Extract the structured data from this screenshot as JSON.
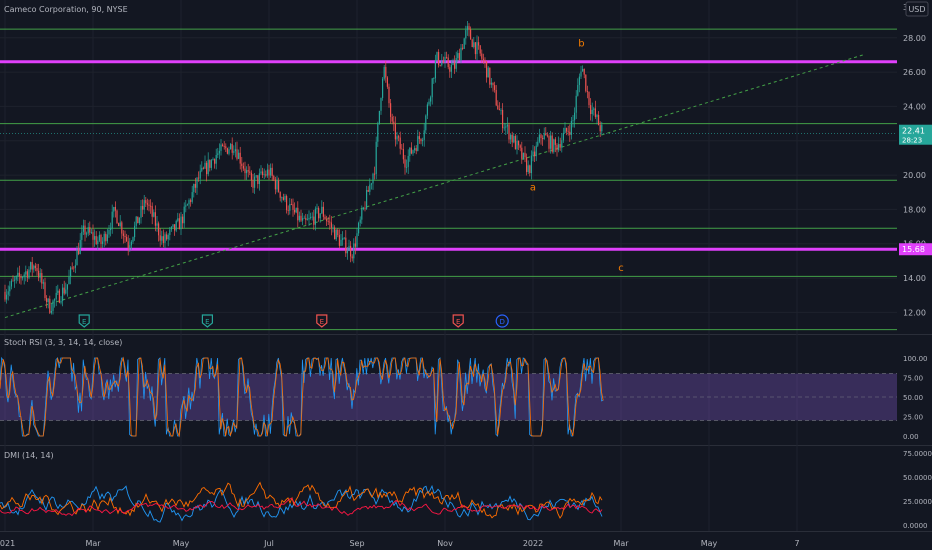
{
  "header": {
    "symbol_title": "Cameco Corporation, 90, NYSE",
    "currency": "USD",
    "top_axis_cut": "30"
  },
  "colors": {
    "background": "#131722",
    "grid": "#1e222d",
    "text": "#b2b5be",
    "up": "#26a69a",
    "down": "#ef5350",
    "hline": "#43a047",
    "magenta": "#e040fb",
    "trend": "#43a047",
    "wave_label": "#f57c00",
    "stoch_k": "#2196f3",
    "stoch_d": "#ff6d00",
    "stoch_band": "#7e57c2",
    "dmi_plus": "#2196f3",
    "dmi_minus": "#ff6d00",
    "dmi_adx": "#ff1744",
    "current_price_bg": "#26a69a"
  },
  "price_axis": {
    "ticks": [
      "28.00",
      "26.00",
      "24.00",
      "22.00",
      "20.00",
      "18.00",
      "16.00",
      "14.00",
      "12.00"
    ],
    "current_price": "22.41",
    "countdown": "28:23",
    "magenta_level_label": "15.68"
  },
  "chart_data": {
    "type": "candlestick",
    "ylim": [
      10.8,
      30.2
    ],
    "x_range_months_from_jan2021": [
      0,
      20
    ],
    "x_tick_labels": [
      "2021",
      "Mar",
      "May",
      "Jul",
      "Sep",
      "Nov",
      "2022",
      "Mar",
      "May",
      "7"
    ],
    "x_tick_months": [
      0,
      2,
      4,
      6,
      8,
      10,
      12,
      14,
      16,
      18
    ],
    "horizontal_levels": [
      28.5,
      23.0,
      19.7,
      16.9,
      14.1,
      11.0
    ],
    "magenta_levels": [
      26.6,
      15.68
    ],
    "trend_line": {
      "from": {
        "month": 0,
        "price": 11.7
      },
      "to": {
        "month": 19.5,
        "price": 27.0
      }
    },
    "close_series": [
      {
        "m": 0.0,
        "p": 13.2
      },
      {
        "m": 0.4,
        "p": 14.2
      },
      {
        "m": 0.7,
        "p": 14.8
      },
      {
        "m": 1.0,
        "p": 12.3
      },
      {
        "m": 1.4,
        "p": 13.5
      },
      {
        "m": 1.8,
        "p": 16.8
      },
      {
        "m": 2.2,
        "p": 16.0
      },
      {
        "m": 2.5,
        "p": 17.9
      },
      {
        "m": 2.8,
        "p": 16.0
      },
      {
        "m": 3.2,
        "p": 18.5
      },
      {
        "m": 3.6,
        "p": 16.1
      },
      {
        "m": 4.0,
        "p": 17.3
      },
      {
        "m": 4.4,
        "p": 19.8
      },
      {
        "m": 4.8,
        "p": 21.2
      },
      {
        "m": 5.2,
        "p": 21.8
      },
      {
        "m": 5.6,
        "p": 19.5
      },
      {
        "m": 6.0,
        "p": 20.2
      },
      {
        "m": 6.4,
        "p": 18.3
      },
      {
        "m": 6.8,
        "p": 17.1
      },
      {
        "m": 7.2,
        "p": 17.9
      },
      {
        "m": 7.6,
        "p": 16.2
      },
      {
        "m": 7.9,
        "p": 15.5
      },
      {
        "m": 8.1,
        "p": 17.5
      },
      {
        "m": 8.4,
        "p": 20.5
      },
      {
        "m": 8.6,
        "p": 26.5
      },
      {
        "m": 8.8,
        "p": 22.8
      },
      {
        "m": 9.1,
        "p": 20.8
      },
      {
        "m": 9.5,
        "p": 22.5
      },
      {
        "m": 9.8,
        "p": 26.8
      },
      {
        "m": 10.2,
        "p": 26.2
      },
      {
        "m": 10.5,
        "p": 28.4
      },
      {
        "m": 10.9,
        "p": 26.5
      },
      {
        "m": 11.3,
        "p": 23.2
      },
      {
        "m": 11.6,
        "p": 21.8
      },
      {
        "m": 11.9,
        "p": 20.3
      },
      {
        "m": 12.2,
        "p": 22.4
      },
      {
        "m": 12.5,
        "p": 21.6
      },
      {
        "m": 12.9,
        "p": 23.0
      },
      {
        "m": 13.1,
        "p": 26.5
      },
      {
        "m": 13.3,
        "p": 24.0
      },
      {
        "m": 13.6,
        "p": 22.41
      }
    ],
    "wave_labels": [
      {
        "text": "b",
        "month": 13.1,
        "price": 27.5
      },
      {
        "text": "a",
        "month": 12.0,
        "price": 19.1
      },
      {
        "text": "c",
        "month": 14.0,
        "price": 14.4
      }
    ],
    "event_markers": [
      {
        "text": "E",
        "month": 1.8,
        "kind": "earnings-positive"
      },
      {
        "text": "E",
        "month": 4.6,
        "kind": "earnings-positive"
      },
      {
        "text": "E",
        "month": 7.2,
        "kind": "earnings-negative"
      },
      {
        "text": "E",
        "month": 10.3,
        "kind": "earnings-negative"
      },
      {
        "text": "D",
        "month": 11.3,
        "kind": "dividend"
      }
    ]
  },
  "stoch_panel": {
    "title": "Stoch RSI (3, 3, 14, 14, close)",
    "ticks": [
      "100.00",
      "75.00",
      "50.00",
      "25.00",
      "0.00"
    ],
    "band": [
      20,
      80
    ],
    "ylim": [
      0,
      100
    ]
  },
  "dmi_panel": {
    "title": "DMI (14, 14)",
    "ticks": [
      "75.0000",
      "50.0000",
      "25.0000",
      "0.0000"
    ],
    "ylim": [
      0,
      80
    ]
  }
}
